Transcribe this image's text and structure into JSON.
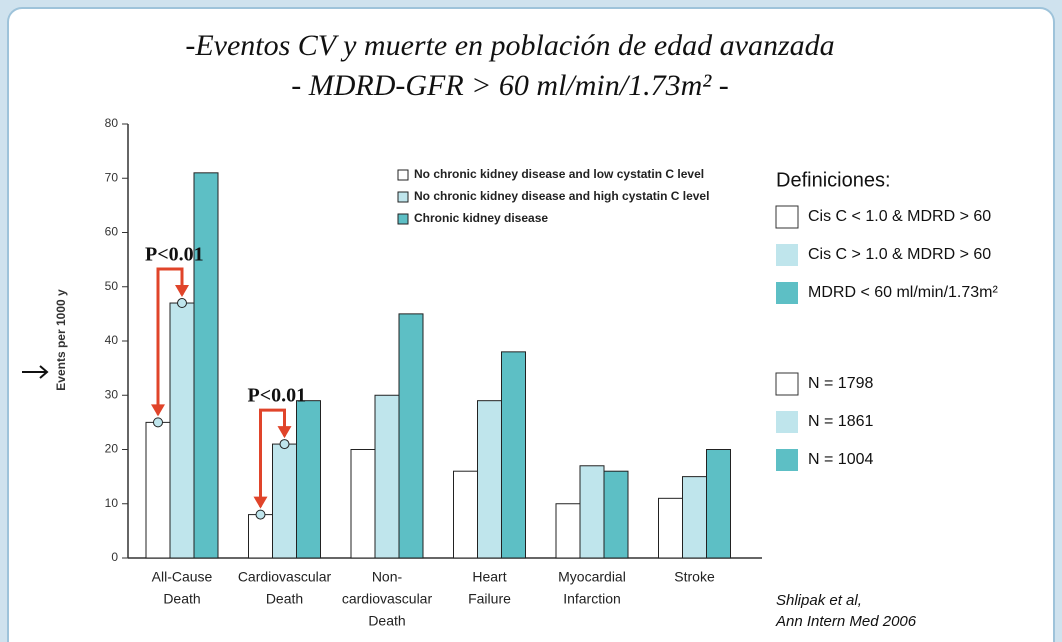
{
  "chart_data": {
    "type": "bar",
    "title": [
      "-Eventos CV y muerte en  población de edad avanzada",
      "- MDRD-GFR > 60 ml/min/1.73m² -"
    ],
    "y_label": "Events per 1000 y",
    "categories": [
      [
        "All-Cause",
        "Death"
      ],
      [
        "Cardiovascular",
        "Death"
      ],
      [
        "Non-",
        "cardiovascular",
        "Death"
      ],
      [
        "Heart",
        "Failure"
      ],
      [
        "Myocardial",
        "Infarction"
      ],
      [
        "Stroke"
      ]
    ],
    "series": [
      {
        "name": "No chronic kidney disease and low cystatin C level",
        "color": "#ffffff",
        "values": [
          25,
          8,
          20,
          16,
          10,
          11
        ]
      },
      {
        "name": "No chronic kidney disease and high cystatin C level",
        "color": "#bfe5ec",
        "values": [
          47,
          21,
          30,
          29,
          17,
          15
        ]
      },
      {
        "name": "Chronic kidney disease",
        "color": "#5dbfc5",
        "values": [
          71,
          29,
          45,
          38,
          16,
          20
        ]
      }
    ],
    "ylim": [
      0,
      80
    ],
    "yticks": [
      0,
      10,
      20,
      30,
      40,
      50,
      60,
      70,
      80
    ],
    "annotations": [
      "P<0.01",
      "P<0.01"
    ]
  },
  "definitions": {
    "title": "Definiciones:",
    "items": [
      "Cis C < 1.0 & MDRD > 60",
      "Cis C > 1.0 & MDRD > 60",
      "MDRD < 60 ml/min/1.73m²"
    ]
  },
  "counts": [
    "N = 1798",
    "N = 1861",
    "N = 1004"
  ],
  "source": [
    "Shlipak et al,",
    "Ann Intern Med 2006"
  ]
}
